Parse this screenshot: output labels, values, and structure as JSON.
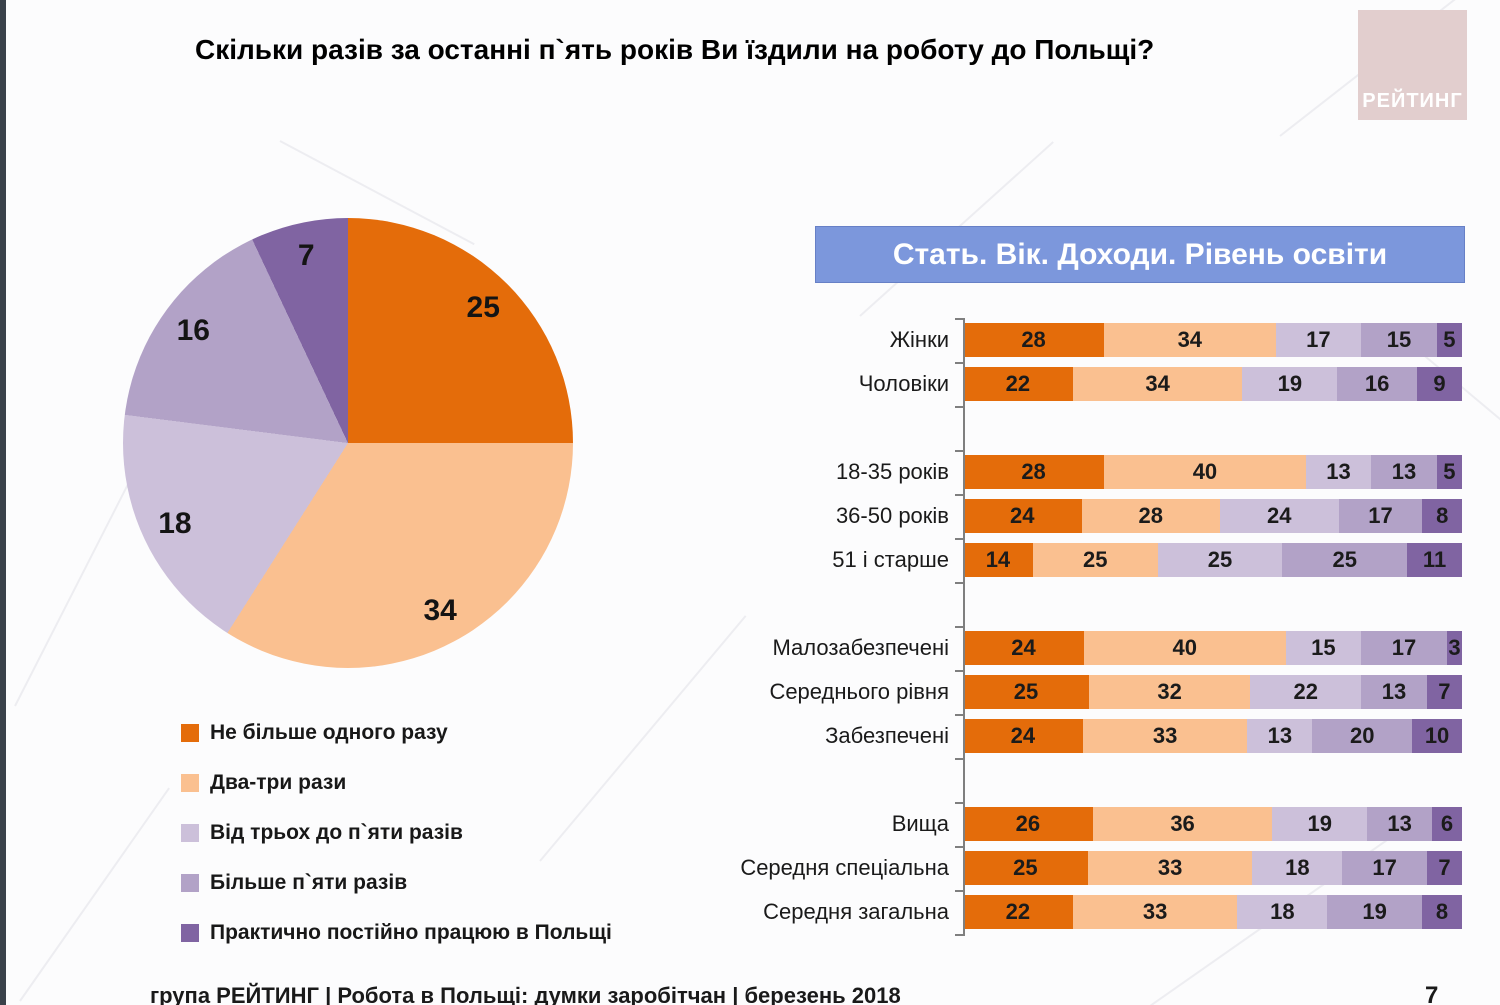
{
  "page": {
    "title": "Скільки разів за останні п`ять років Ви їздили на роботу до Польщі?",
    "logo_text": "РЕЙТИНГ",
    "banner": "Стать. Вік. Доходи. Рівень освіти",
    "footer_left": "група РЕЙТИНГ  | Робота в Польщі: думки заробітчан  |  березень 2018",
    "page_number": "7"
  },
  "colors": {
    "series": [
      "#e46c0a",
      "#fac090",
      "#ccc0da",
      "#b2a2c7",
      "#8064a2"
    ],
    "banner_bg": "#7c97dc",
    "logo_bg": "#e2cece",
    "edge_strip": "#3a414a"
  },
  "legend": [
    "Не більше одного разу",
    "Два-три рази",
    "Від трьох до п`яти разів",
    "Більше п`яти разів",
    "Практично постійно працюю в Польщі"
  ],
  "chart_data": [
    {
      "type": "pie",
      "title": "Скільки разів за останні п`ять років Ви їздили на роботу до Польщі?",
      "labels": [
        "Не більше одного разу",
        "Два-три рази",
        "Від трьох до п`яти разів",
        "Більше п`яти разів",
        "Практично постійно працюю в Польщі"
      ],
      "values": [
        25,
        34,
        18,
        16,
        7
      ],
      "colors": [
        "#e46c0a",
        "#fac090",
        "#ccc0da",
        "#b2a2c7",
        "#8064a2"
      ],
      "start_angle_deg": 0,
      "direction": "clockwise",
      "legend_position": "bottom-left"
    },
    {
      "type": "bar",
      "orientation": "horizontal-stacked",
      "title": "Стать. Вік. Доходи. Рівень освіти",
      "series_names": [
        "Не більше одного разу",
        "Два-три рази",
        "Від трьох до п`яти разів",
        "Більше п`яти разів",
        "Практично постійно працюю в Польщі"
      ],
      "x_max": 100,
      "grid": false,
      "groups": [
        [
          {
            "label": "Жінки",
            "values": [
              28,
              34,
              17,
              15,
              5
            ]
          },
          {
            "label": "Чоловіки",
            "values": [
              22,
              34,
              19,
              16,
              9
            ]
          }
        ],
        [
          {
            "label": "18-35 років",
            "values": [
              28,
              40,
              13,
              13,
              5
            ]
          },
          {
            "label": "36-50 років",
            "values": [
              24,
              28,
              24,
              17,
              8
            ]
          },
          {
            "label": "51 і старше",
            "values": [
              14,
              25,
              25,
              25,
              11
            ]
          }
        ],
        [
          {
            "label": "Малозабезпечені",
            "values": [
              24,
              40,
              15,
              17,
              3
            ]
          },
          {
            "label": "Середнього рівня",
            "values": [
              25,
              32,
              22,
              13,
              7
            ]
          },
          {
            "label": "Забезпечені",
            "values": [
              24,
              33,
              13,
              20,
              10
            ]
          }
        ],
        [
          {
            "label": "Вища",
            "values": [
              26,
              36,
              19,
              13,
              6
            ]
          },
          {
            "label": "Середня спеціальна",
            "values": [
              25,
              33,
              18,
              17,
              7
            ]
          },
          {
            "label": "Середня загальна",
            "values": [
              22,
              33,
              18,
              19,
              8
            ]
          }
        ]
      ]
    }
  ]
}
